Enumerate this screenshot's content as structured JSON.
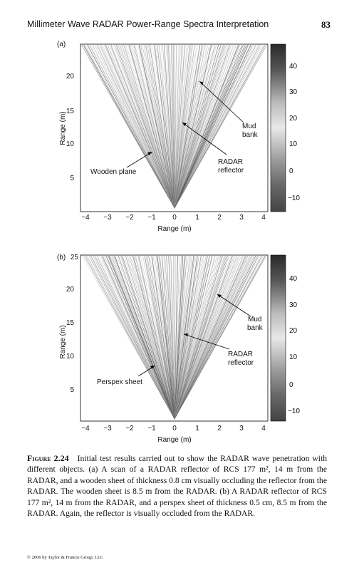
{
  "header": {
    "title": "Millimeter Wave RADAR Power-Range Spectra Interpretation",
    "page_number": "83"
  },
  "figures": [
    {
      "panel_label": "(a)",
      "xlabel": "Range (m)",
      "ylabel": "Range (m)",
      "x_ticks": [
        "−4",
        "−3",
        "−2",
        "−1",
        "0",
        "1",
        "2",
        "3",
        "4"
      ],
      "y_ticks": [
        "5",
        "10",
        "15",
        "20"
      ],
      "colorbar_ticks": [
        "40",
        "30",
        "20",
        "10",
        "0",
        "−10"
      ],
      "annotations": {
        "mud": [
          "Mud",
          "bank"
        ],
        "reflector": [
          "RADAR",
          "reflector"
        ],
        "object": "Wooden plane"
      }
    },
    {
      "panel_label": "(b)",
      "xlabel": "Range (m)",
      "ylabel": "Range (m)",
      "x_ticks": [
        "−4",
        "−3",
        "−2",
        "−1",
        "0",
        "1",
        "2",
        "3",
        "4"
      ],
      "y_ticks": [
        "5",
        "10",
        "15",
        "20",
        "25"
      ],
      "colorbar_ticks": [
        "40",
        "30",
        "20",
        "10",
        "0",
        "−10"
      ],
      "annotations": {
        "mud": [
          "Mud",
          "bank"
        ],
        "reflector": [
          "RADAR",
          "reflector"
        ],
        "object": "Perspex sheet"
      }
    }
  ],
  "caption": {
    "label": "Figure 2.24",
    "text": "Initial test results carried out to show the RADAR wave penetration with different objects. (a) A scan of a RADAR reflector of RCS 177 m², 14 m from the RADAR, and a wooden sheet of thickness 0.8 cm visually occluding the reflector from the RADAR. The wooden sheet is 8.5 m from the RADAR. (b) A RADAR reflector of RCS 177 m², 14 m from the RADAR, and a perspex sheet of thickness 0.5 cm, 8.5 m from the RADAR. Again, the reflector is visually occluded from the RADAR."
  },
  "footer": "© 2006 by Taylor & Francis Group, LLC"
}
